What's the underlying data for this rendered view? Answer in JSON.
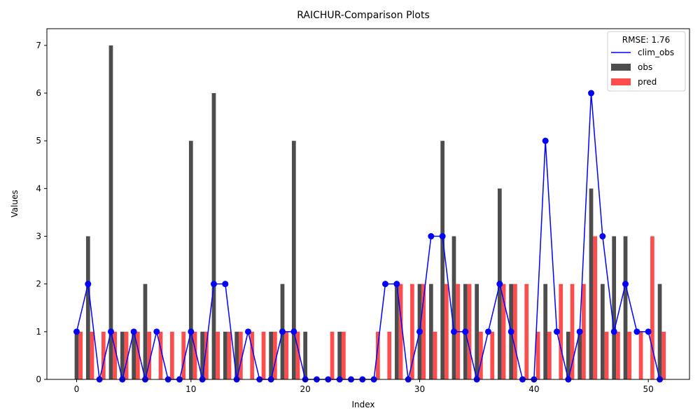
{
  "chart_data": {
    "type": "bar",
    "title": "RAICHUR-Comparison Plots",
    "xlabel": "Index",
    "ylabel": "Values",
    "xlim": [
      -2.6,
      53.6
    ],
    "ylim": [
      0,
      7.35
    ],
    "x_ticks": [
      0,
      10,
      20,
      30,
      40,
      50
    ],
    "y_ticks": [
      0,
      1,
      2,
      3,
      4,
      5,
      6,
      7
    ],
    "legend": {
      "title": "RMSE: 1.76",
      "placement": "top-right"
    },
    "series": [
      {
        "name": "clim_obs",
        "kind": "line",
        "color": "#0000ff",
        "values": [
          1,
          2,
          0,
          1,
          0,
          1,
          0,
          1,
          0,
          0,
          1,
          0,
          2,
          2,
          0,
          1,
          0,
          0,
          1,
          1,
          0,
          0,
          0,
          0,
          0,
          0,
          0,
          2,
          2,
          0,
          1,
          3,
          3,
          1,
          1,
          0,
          1,
          2,
          1,
          0,
          0,
          5,
          1,
          0,
          1,
          6,
          3,
          1,
          2,
          1,
          1,
          0
        ]
      },
      {
        "name": "obs",
        "kind": "bar",
        "color": "#4d4d4d",
        "values": [
          1,
          3,
          0,
          7,
          1,
          1,
          2,
          0,
          0,
          0,
          5,
          1,
          6,
          1,
          1,
          0,
          0,
          1,
          2,
          5,
          1,
          0,
          0,
          1,
          0,
          0,
          0,
          0,
          2,
          0,
          2,
          2,
          5,
          3,
          2,
          2,
          0,
          4,
          2,
          0,
          0,
          2,
          0,
          1,
          1,
          4,
          2,
          3,
          3,
          0,
          0,
          2
        ]
      },
      {
        "name": "pred",
        "kind": "bar",
        "color": "#ff4d4d",
        "values": [
          1,
          1,
          1,
          1,
          1,
          1,
          1,
          1,
          1,
          1,
          1,
          1,
          1,
          1,
          1,
          1,
          1,
          1,
          1,
          1,
          0,
          0,
          1,
          1,
          0,
          0,
          1,
          1,
          2,
          2,
          2,
          1,
          2,
          2,
          2,
          1,
          1,
          2,
          2,
          2,
          1,
          1,
          2,
          2,
          2,
          3,
          1,
          1,
          1,
          1,
          3,
          1
        ]
      }
    ]
  }
}
